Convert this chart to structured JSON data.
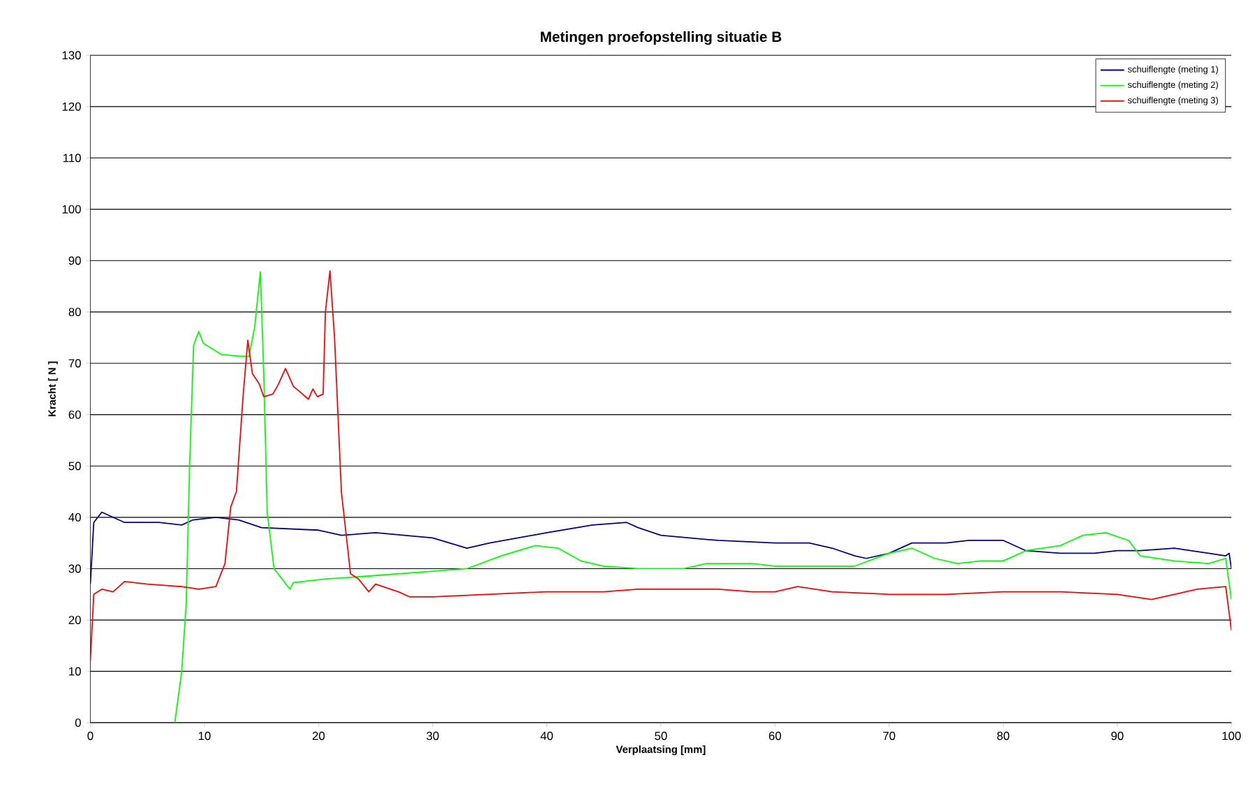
{
  "chart_data": {
    "type": "line",
    "title": "Metingen proefopstelling situatie B",
    "xlabel": "Verplaatsing [mm]",
    "ylabel": "Kracht [ N ]",
    "xlim": [
      0,
      100
    ],
    "xticks": [
      0,
      10,
      20,
      30,
      40,
      50,
      60,
      70,
      80,
      90,
      100
    ],
    "ylim": [
      0,
      130
    ],
    "yticks": [
      0,
      10,
      20,
      30,
      40,
      50,
      60,
      70,
      80,
      90,
      100,
      110,
      120,
      130
    ],
    "grid": "y",
    "legend": "top right",
    "marker": "none",
    "line_style": "solid",
    "series": [
      {
        "name": "schuiflengte (meting 1)",
        "color": "#000080",
        "x": [
          0,
          0.3,
          1,
          3,
          6,
          8,
          9,
          11,
          13,
          15,
          20,
          22,
          25,
          30,
          33,
          35,
          40,
          44,
          47,
          48,
          50,
          55,
          60,
          63,
          65,
          67,
          68,
          70,
          72,
          75,
          77,
          80,
          82,
          85,
          88,
          90,
          92,
          95,
          98,
          99.5,
          99.8,
          100
        ],
        "values": [
          27,
          39,
          41,
          39,
          39,
          38.5,
          39.5,
          40,
          39.5,
          38,
          37.5,
          36.5,
          37,
          36,
          34,
          35,
          37,
          38.5,
          39,
          38,
          36.5,
          35.5,
          35,
          35,
          34,
          32.5,
          32,
          33,
          35,
          35,
          35.5,
          35.5,
          33.5,
          33,
          33,
          33.5,
          33.5,
          34,
          33,
          32.5,
          33,
          30
        ]
      },
      {
        "name": "schuiflengte (meting 2)",
        "color": "#00ff00",
        "x": [
          7.4,
          8.0,
          8.4,
          8.7,
          9.05,
          9.5,
          9.9,
          11.5,
          12.5,
          13.9,
          14.4,
          14.9,
          15.2,
          15.5,
          16.1,
          17.5,
          17.8,
          20.7,
          24,
          30,
          33,
          36,
          39,
          41,
          43,
          45,
          48,
          52,
          54,
          58,
          60,
          62,
          64,
          67,
          70,
          72,
          74,
          76,
          78,
          80,
          82,
          85,
          87,
          89,
          91,
          92,
          95,
          98,
          99.5,
          100
        ],
        "values": [
          0,
          9.8,
          23,
          50,
          73.5,
          76.2,
          73.9,
          71.7,
          71.5,
          71.3,
          77,
          87.8,
          68,
          41,
          30,
          26,
          27.3,
          28,
          28.5,
          29.5,
          30,
          32.5,
          34.5,
          34,
          31.5,
          30.5,
          30,
          30,
          31,
          31,
          30.5,
          30.5,
          30.5,
          30.5,
          33,
          34,
          32,
          31,
          31.5,
          31.5,
          33.5,
          34.5,
          36.5,
          37,
          35.5,
          32.5,
          31.5,
          31,
          32,
          24
        ]
      },
      {
        "name": "schuiflengte (meting 3)",
        "color": "#ff0000",
        "x": [
          0,
          0.3,
          1,
          2,
          3,
          5,
          8,
          9.5,
          11,
          11.8,
          12.3,
          12.8,
          13.4,
          13.8,
          14.2,
          14.8,
          15.2,
          16,
          16.5,
          17.1,
          17.8,
          18.6,
          19.1,
          19.5,
          19.9,
          20.4,
          20.6,
          21,
          21.4,
          22,
          22.8,
          23.5,
          24.4,
          25,
          27,
          28,
          30,
          35,
          40,
          45,
          48,
          50,
          55,
          58,
          60,
          62,
          65,
          70,
          75,
          80,
          85,
          90,
          93,
          95,
          97,
          99.5,
          100
        ],
        "values": [
          12,
          25,
          26,
          25.5,
          27.5,
          27,
          26.5,
          26,
          26.5,
          31,
          42,
          45,
          64,
          74.5,
          68,
          66,
          63.5,
          64,
          66,
          69,
          65.5,
          64,
          63,
          65,
          63.5,
          64,
          80,
          88,
          75,
          45,
          29,
          28,
          25.5,
          27,
          25.5,
          24.5,
          24.5,
          25,
          25.5,
          25.5,
          26,
          26,
          26,
          25.5,
          25.5,
          26.5,
          25.5,
          25,
          25,
          25.5,
          25.5,
          25,
          24,
          25,
          26,
          26.5,
          18
        ]
      }
    ]
  }
}
